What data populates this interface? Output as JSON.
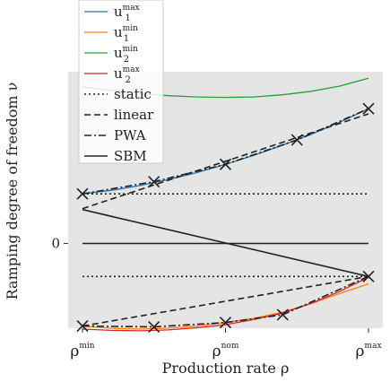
{
  "chart_data": {
    "type": "line",
    "xlabel": "Production rate ρ",
    "ylabel": "Ramping degree of freedom ν",
    "x_tick_labels": [
      {
        "x": 0,
        "base": "ρ",
        "sup": "min"
      },
      {
        "x": 0.5,
        "base": "ρ",
        "sup": "nom"
      },
      {
        "x": 1,
        "base": "ρ",
        "sup": "max"
      }
    ],
    "y_ticks": [
      {
        "y": 0,
        "label": "0"
      }
    ],
    "xlim": [
      -0.05,
      1.05
    ],
    "ylim": [
      -1.95,
      3.95
    ],
    "grid": false,
    "background": "#e5e5e5",
    "legend_position": "top-left",
    "series": [
      {
        "name": "u",
        "sub": "1",
        "sup": "max",
        "color": "#1f77b4",
        "style": "solid",
        "x": [
          0,
          0.1,
          0.2,
          0.3,
          0.4,
          0.5,
          0.6,
          0.7,
          0.8,
          0.9,
          1.0
        ],
        "y": [
          1.14,
          1.22,
          1.33,
          1.47,
          1.63,
          1.82,
          2.03,
          2.26,
          2.51,
          2.79,
          3.1
        ]
      },
      {
        "name": "u",
        "sub": "1",
        "sup": "min",
        "color": "#ff7f0e",
        "style": "solid",
        "x": [
          0,
          0.1,
          0.2,
          0.3,
          0.4,
          0.5,
          0.6,
          0.7,
          0.8,
          0.9,
          1.0
        ],
        "y": [
          -1.9,
          -1.95,
          -1.97,
          -1.95,
          -1.9,
          -1.82,
          -1.72,
          -1.58,
          -1.38,
          -1.15,
          -0.93
        ]
      },
      {
        "name": "u",
        "sub": "2",
        "sup": "min",
        "color": "#2ca02c",
        "style": "solid",
        "x": [
          0,
          0.1,
          0.2,
          0.3,
          0.4,
          0.5,
          0.6,
          0.7,
          0.8,
          0.9,
          1.0
        ],
        "y": [
          3.6,
          3.52,
          3.45,
          3.4,
          3.37,
          3.36,
          3.37,
          3.42,
          3.5,
          3.62,
          3.8
        ]
      },
      {
        "name": "u",
        "sub": "2",
        "sup": "max",
        "color": "#d62728",
        "style": "solid",
        "x": [
          0,
          0.1,
          0.2,
          0.3,
          0.4,
          0.5,
          0.6,
          0.7,
          0.8,
          0.9,
          1.0
        ],
        "y": [
          -1.97,
          -2.0,
          -2.01,
          -1.99,
          -1.94,
          -1.87,
          -1.75,
          -1.6,
          -1.38,
          -1.1,
          -0.78
        ]
      },
      {
        "name": "static",
        "color": "#222222",
        "style": "dotted",
        "segments": [
          {
            "x": [
              0,
              1
            ],
            "y": [
              1.14,
              1.14
            ]
          },
          {
            "x": [
              0,
              1
            ],
            "y": [
              -0.76,
              -0.76
            ]
          }
        ]
      },
      {
        "name": "linear",
        "color": "#222222",
        "style": "dashed",
        "segments": [
          {
            "x": [
              0,
              1
            ],
            "y": [
              0.8,
              2.98
            ]
          },
          {
            "x": [
              0,
              1
            ],
            "y": [
              -1.9,
              -0.76
            ]
          }
        ]
      },
      {
        "name": "PWA",
        "color": "#222222",
        "style": "dashdot",
        "segments": [
          {
            "x": [
              0,
              0.25,
              0.5,
              0.75,
              1.0
            ],
            "y": [
              1.14,
              1.42,
              1.82,
              2.38,
              3.1
            ]
          },
          {
            "x": [
              0,
              0.25,
              0.5,
              0.7,
              1.0
            ],
            "y": [
              -1.9,
              -1.92,
              -1.82,
              -1.64,
              -0.76
            ]
          }
        ]
      },
      {
        "name": "SBM",
        "color": "#222222",
        "style": "solid",
        "segments": [
          {
            "x": [
              0,
              1
            ],
            "y": [
              0.78,
              -0.76
            ]
          },
          {
            "x": [
              0,
              1
            ],
            "y": [
              0.0,
              0.0
            ]
          }
        ]
      }
    ],
    "markers": {
      "symbol": "x",
      "color": "#222222",
      "points": [
        {
          "x": 0,
          "y": 1.14
        },
        {
          "x": 0.25,
          "y": 1.42
        },
        {
          "x": 0.5,
          "y": 1.82
        },
        {
          "x": 0.75,
          "y": 2.38
        },
        {
          "x": 1.0,
          "y": 3.1
        },
        {
          "x": 0,
          "y": -1.9
        },
        {
          "x": 0.25,
          "y": -1.92
        },
        {
          "x": 0.5,
          "y": -1.82
        },
        {
          "x": 0.7,
          "y": -1.64
        },
        {
          "x": 1.0,
          "y": -0.76
        }
      ]
    }
  }
}
